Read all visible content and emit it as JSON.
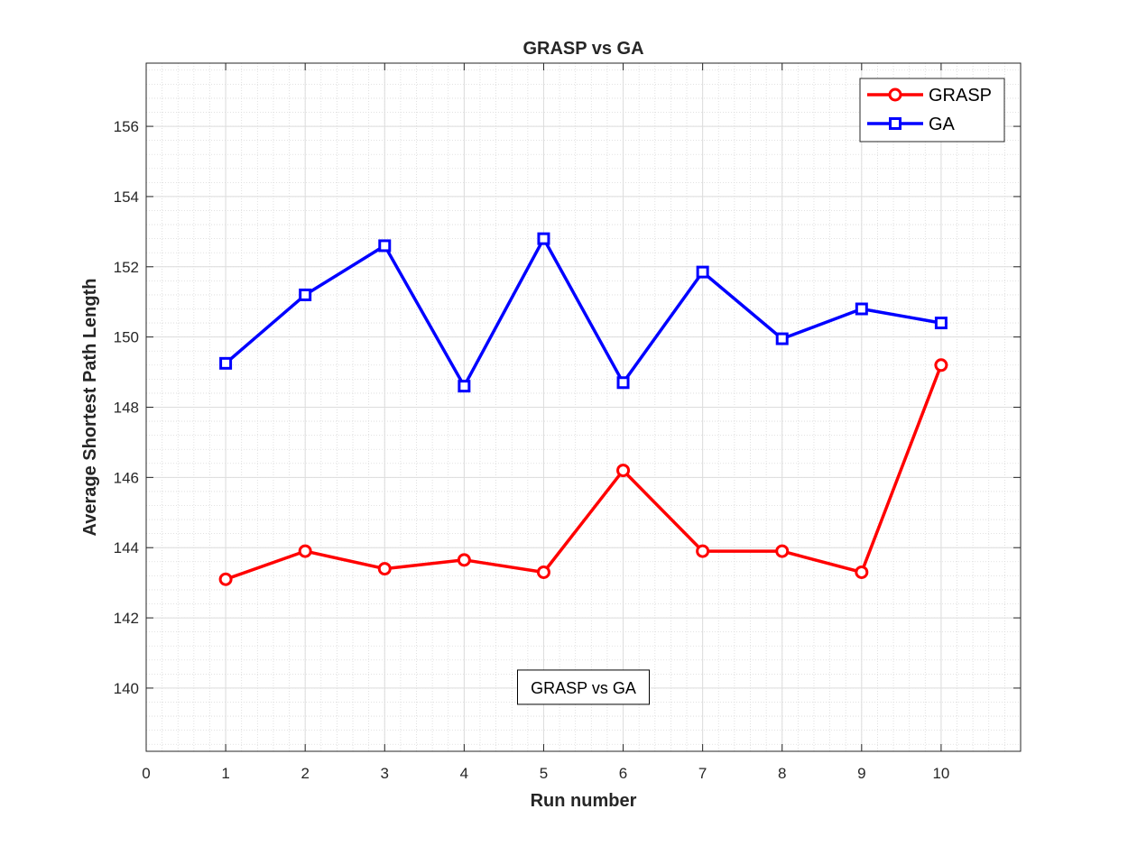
{
  "chart_data": {
    "type": "line",
    "title": "GRASP vs GA",
    "xlabel": "Run number",
    "ylabel": "Average Shortest Path Length",
    "xlim": [
      0,
      11
    ],
    "ylim": [
      138.2,
      157.8
    ],
    "xticks": [
      0,
      1,
      2,
      3,
      4,
      5,
      6,
      7,
      8,
      9,
      10
    ],
    "yticks": [
      140,
      142,
      144,
      146,
      148,
      150,
      152,
      154,
      156
    ],
    "x": [
      1,
      2,
      3,
      4,
      5,
      6,
      7,
      8,
      9,
      10
    ],
    "grid": true,
    "minor_grid": true,
    "legend_position": "top-right",
    "series": [
      {
        "name": "GRASP",
        "color": "#ff0000",
        "marker": "circle",
        "values": [
          143.1,
          143.9,
          143.4,
          143.65,
          143.3,
          146.2,
          143.9,
          143.9,
          143.3,
          149.2
        ]
      },
      {
        "name": "GA",
        "color": "#0000ff",
        "marker": "square",
        "values": [
          149.25,
          151.2,
          152.6,
          148.6,
          152.8,
          148.7,
          151.85,
          149.95,
          150.8,
          150.4
        ]
      }
    ],
    "annotation": {
      "text": "GRASP vs GA",
      "x": 5.5,
      "y": 140
    }
  }
}
